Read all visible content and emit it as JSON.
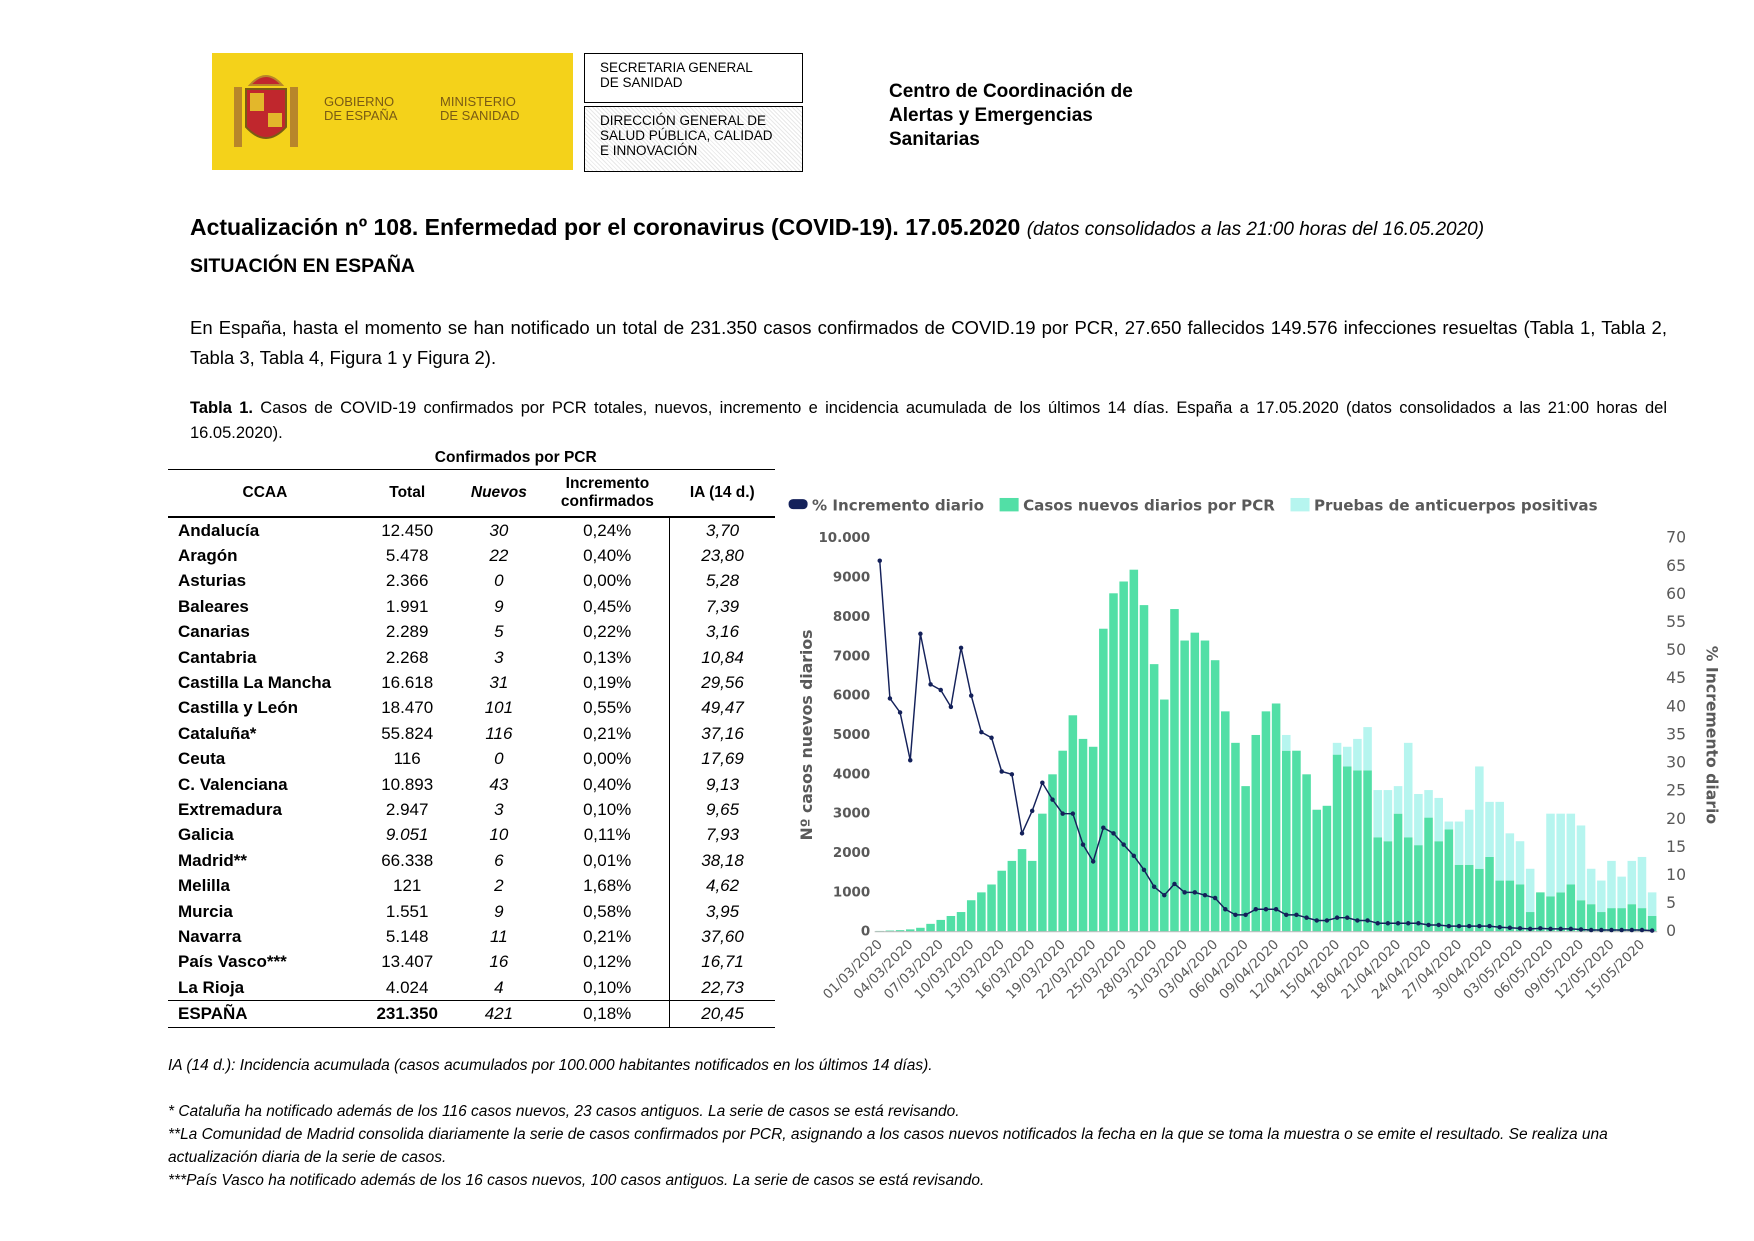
{
  "header": {
    "logo_left": "GOBIERNO\nDE ESPAÑA",
    "logo_right": "MINISTERIO\nDE SANIDAD",
    "box_top": "SECRETARIA GENERAL\nDE SANIDAD",
    "box_bottom": "DIRECCIÓN GENERAL DE\nSALUD PÚBLICA, CALIDAD\nE INNOVACIÓN",
    "centre": "Centro de Coordinación de\nAlertas y Emergencias\nSanitarias"
  },
  "title": "Actualización nº 108. Enfermedad por el coronavirus (COVID-19). 17.05.2020",
  "title_note": "(datos consolidados a las 21:00 horas del 16.05.2020)",
  "section": "SITUACIÓN EN ESPAÑA",
  "intro": "En España, hasta el momento se han notificado un total de 231.350 casos confirmados de COVID.19 por PCR, 27.650 fallecidos 149.576 infecciones resueltas (Tabla 1, Tabla 2, Tabla 3, Tabla 4, Figura 1 y Figura 2).",
  "caption_label": "Tabla 1.",
  "caption": "Casos de COVID-19 confirmados por PCR totales, nuevos, incremento e incidencia acumulada de los últimos 14 días. España a 17.05.2020 (datos consolidados a las 21:00 horas del 16.05.2020).",
  "table": {
    "group_header": "Confirmados por PCR",
    "columns": [
      "CCAA",
      "Total",
      "Nuevos",
      "Incremento confirmados",
      "IA (14 d.)"
    ],
    "rows": [
      [
        "Andalucía",
        "12.450",
        "30",
        "0,24%",
        "3,70"
      ],
      [
        "Aragón",
        "5.478",
        "22",
        "0,40%",
        "23,80"
      ],
      [
        "Asturias",
        "2.366",
        "0",
        "0,00%",
        "5,28"
      ],
      [
        "Baleares",
        "1.991",
        "9",
        "0,45%",
        "7,39"
      ],
      [
        "Canarias",
        "2.289",
        "5",
        "0,22%",
        "3,16"
      ],
      [
        "Cantabria",
        "2.268",
        "3",
        "0,13%",
        "10,84"
      ],
      [
        "Castilla La Mancha",
        "16.618",
        "31",
        "0,19%",
        "29,56"
      ],
      [
        "Castilla y León",
        "18.470",
        "101",
        "0,55%",
        "49,47"
      ],
      [
        "Cataluña*",
        "55.824",
        "116",
        "0,21%",
        "37,16"
      ],
      [
        "Ceuta",
        "116",
        "0",
        "0,00%",
        "17,69"
      ],
      [
        "C. Valenciana",
        "10.893",
        "43",
        "0,40%",
        "9,13"
      ],
      [
        "Extremadura",
        "2.947",
        "3",
        "0,10%",
        "9,65"
      ],
      [
        "Galicia",
        "9.051",
        "10",
        "0,11%",
        "7,93"
      ],
      [
        "Madrid**",
        "66.338",
        "6",
        "0,01%",
        "38,18"
      ],
      [
        "Melilla",
        "121",
        "2",
        "1,68%",
        "4,62"
      ],
      [
        "Murcia",
        "1.551",
        "9",
        "0,58%",
        "3,95"
      ],
      [
        "Navarra",
        "5.148",
        "11",
        "0,21%",
        "37,60"
      ],
      [
        "País Vasco***",
        "13.407",
        "16",
        "0,12%",
        "16,71"
      ],
      [
        "La Rioja",
        "4.024",
        "4",
        "0,10%",
        "22,73"
      ],
      [
        "ESPAÑA",
        "231.350",
        "421",
        "0,18%",
        "20,45"
      ]
    ]
  },
  "chart_data": {
    "type": "bar",
    "stacked": true,
    "grid": false,
    "ylabel": "Nº casos nuevos diarios",
    "y2label": "% Incremento diario",
    "ylim": [
      0,
      10000
    ],
    "yticks": [
      0,
      1000,
      2000,
      3000,
      4000,
      5000,
      6000,
      7000,
      8000,
      9000,
      {
        "value": 10000,
        "label": "10.000"
      }
    ],
    "y2lim": [
      0,
      70
    ],
    "y2ticks": [
      0,
      5,
      10,
      15,
      20,
      25,
      30,
      35,
      40,
      45,
      50,
      55,
      60,
      65,
      70
    ],
    "categories": [
      "01/03/2020",
      null,
      null,
      "04/03/2020",
      null,
      null,
      "07/03/2020",
      null,
      null,
      "10/03/2020",
      null,
      null,
      "13/03/2020",
      null,
      null,
      "16/03/2020",
      null,
      null,
      "19/03/2020",
      null,
      null,
      "22/03/2020",
      null,
      null,
      "25/03/2020",
      null,
      null,
      "28/03/2020",
      null,
      null,
      "31/03/2020",
      null,
      null,
      "03/04/2020",
      null,
      null,
      "06/04/2020",
      null,
      null,
      "09/04/2020",
      null,
      null,
      "12/04/2020",
      null,
      null,
      "15/04/2020",
      null,
      null,
      "18/04/2020",
      null,
      null,
      "21/04/2020",
      null,
      null,
      "24/04/2020",
      null,
      null,
      "27/04/2020",
      null,
      null,
      "30/04/2020",
      null,
      null,
      "03/05/2020",
      null,
      null,
      "06/05/2020",
      null,
      null,
      "09/05/2020",
      null,
      null,
      "12/05/2020",
      null,
      null,
      "15/05/2020",
      null
    ],
    "series": [
      {
        "name": "% Incremento diario",
        "type": "line",
        "axis": "y2",
        "color": "#14215a",
        "values": [
          66,
          41.5,
          39,
          30.5,
          53,
          44,
          43,
          40,
          50.5,
          42,
          35.5,
          34.5,
          28.5,
          28,
          17.5,
          21.5,
          26.5,
          23.5,
          21,
          21,
          15.5,
          12.5,
          18.5,
          17.5,
          15.5,
          13.5,
          11,
          8,
          6.5,
          8.5,
          7,
          7,
          6.5,
          6,
          4,
          3,
          3,
          4,
          4,
          4,
          3,
          3,
          2.5,
          2,
          2,
          2.5,
          2.5,
          2,
          2,
          1.5,
          1.5,
          1.5,
          1.5,
          1.5,
          1.2,
          1.2,
          1,
          1,
          1,
          1,
          1,
          0.8,
          0.7,
          0.6,
          0.5,
          0.6,
          0.5,
          0.5,
          0.5,
          0.4,
          0.3,
          0.3,
          0.3,
          0.3,
          0.3,
          0.3,
          0.2
        ]
      },
      {
        "name": "Casos nuevos diarios por PCR",
        "type": "bar",
        "color": "#52dfa6",
        "values": [
          20,
          30,
          40,
          60,
          100,
          200,
          300,
          400,
          500,
          800,
          1000,
          1200,
          1550,
          1800,
          2100,
          1800,
          3000,
          4000,
          4600,
          5500,
          4900,
          4700,
          7700,
          8600,
          8900,
          9200,
          8300,
          6800,
          5900,
          8200,
          7400,
          7600,
          7400,
          6900,
          5600,
          4800,
          3700,
          5000,
          5600,
          5800,
          4600,
          4600,
          4000,
          3100,
          3200,
          4500,
          4200,
          4100,
          4100,
          2400,
          2300,
          3000,
          2400,
          2200,
          2900,
          2300,
          2600,
          1700,
          1700,
          1600,
          1900,
          1300,
          1300,
          1200,
          500,
          1000,
          900,
          1000,
          1200,
          800,
          700,
          500,
          600,
          600,
          700,
          600,
          400
        ]
      },
      {
        "name": "Pruebas de anticuerpos positivas",
        "type": "bar",
        "color": "#b6f5ef",
        "values": [
          0,
          0,
          0,
          0,
          0,
          0,
          0,
          0,
          0,
          0,
          0,
          0,
          0,
          0,
          0,
          0,
          0,
          0,
          0,
          0,
          0,
          0,
          0,
          0,
          0,
          0,
          0,
          0,
          0,
          0,
          0,
          0,
          0,
          0,
          0,
          0,
          0,
          0,
          0,
          0,
          400,
          0,
          0,
          0,
          0,
          300,
          500,
          800,
          1100,
          1200,
          1300,
          700,
          2400,
          1300,
          700,
          1100,
          200,
          1100,
          1400,
          2600,
          1400,
          2000,
          1200,
          1100,
          1100,
          0,
          2100,
          2000,
          1800,
          1900,
          900,
          800,
          1200,
          800,
          1100,
          1300,
          600
        ]
      }
    ]
  },
  "notes": [
    "IA (14 d.): Incidencia acumulada (casos acumulados por 100.000 habitantes notificados en los últimos 14 días).",
    "* Cataluña ha notificado además de los 116 casos nuevos, 23 casos antiguos. La serie de casos se está revisando.",
    "**La Comunidad de Madrid consolida diariamente la serie de casos confirmados por PCR, asignando a los casos nuevos notificados la fecha en la que se toma la muestra o se emite el resultado. Se realiza una actualización diaria de la serie de casos.",
    "***País Vasco ha notificado además de los 16 casos nuevos, 100 casos antiguos. La serie de casos se está revisando."
  ]
}
